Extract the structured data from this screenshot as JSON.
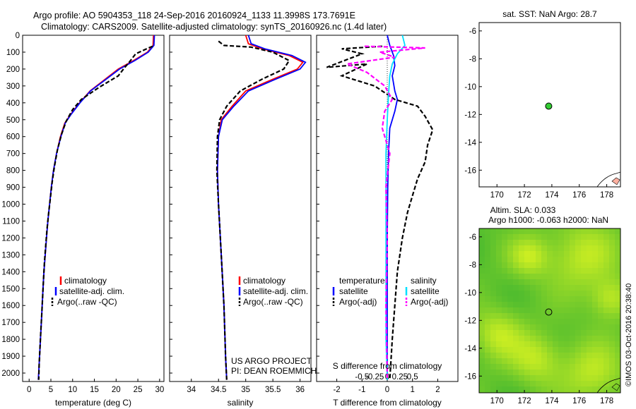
{
  "header": {
    "title_line1": "Argo profile: AO 5904353_118 24-Sep-2016 20160924_1133 11.3998S 173.7691E",
    "title_line2": "Climatology: CARS2009. Satellite-adjusted climatology: synTS_20160926.nc (1.4d later)"
  },
  "colors": {
    "climatology": "#ff0000",
    "satellite": "#0000ff",
    "argo": "#000000",
    "sal_satellite": "#00e0ff",
    "sal_argo": "#ff00ff",
    "map_green": "#33cc33",
    "sla_low": "#22aa33",
    "sla_high": "#ccee22"
  },
  "chart_data": [
    {
      "type": "line",
      "id": "temperature",
      "xlabel": "temperature (deg C)",
      "xlim": [
        -1.5,
        31
      ],
      "xticks": [
        0,
        5,
        10,
        15,
        20,
        25,
        30
      ],
      "ylim": [
        0,
        2050
      ],
      "yticks": [
        0,
        100,
        200,
        300,
        400,
        500,
        600,
        700,
        800,
        900,
        1000,
        1100,
        1200,
        1300,
        1400,
        1500,
        1600,
        1700,
        1800,
        1900,
        2000
      ],
      "series": [
        {
          "name": "climatology",
          "color": "#ff0000",
          "points": [
            [
              28.6,
              0
            ],
            [
              28.5,
              60
            ],
            [
              27.2,
              100
            ],
            [
              24,
              150
            ],
            [
              20.5,
              200
            ],
            [
              17,
              270
            ],
            [
              14,
              330
            ],
            [
              11.6,
              400
            ],
            [
              9.5,
              470
            ],
            [
              8.2,
              520
            ],
            [
              7.2,
              600
            ],
            [
              6.3,
              700
            ],
            [
              5.6,
              800
            ],
            [
              5.1,
              900
            ],
            [
              4.7,
              1000
            ],
            [
              4.3,
              1100
            ],
            [
              4.0,
              1200
            ],
            [
              3.7,
              1300
            ],
            [
              3.4,
              1400
            ],
            [
              3.2,
              1500
            ],
            [
              3.0,
              1600
            ],
            [
              2.8,
              1700
            ],
            [
              2.6,
              1800
            ],
            [
              2.4,
              1900
            ],
            [
              2.2,
              2000
            ],
            [
              2.1,
              2040
            ]
          ]
        },
        {
          "name": "satellite-adj. clim.",
          "color": "#0000ff",
          "points": [
            [
              28.8,
              0
            ],
            [
              28.7,
              60
            ],
            [
              27.4,
              100
            ],
            [
              24.3,
              150
            ],
            [
              20.8,
              200
            ],
            [
              17.2,
              270
            ],
            [
              14.1,
              330
            ],
            [
              11.7,
              400
            ],
            [
              9.6,
              470
            ],
            [
              8.3,
              520
            ],
            [
              7.3,
              600
            ],
            [
              6.3,
              700
            ],
            [
              5.6,
              800
            ],
            [
              5.1,
              900
            ],
            [
              4.7,
              1000
            ],
            [
              4.3,
              1100
            ],
            [
              4.0,
              1200
            ],
            [
              3.7,
              1300
            ],
            [
              3.4,
              1400
            ],
            [
              3.2,
              1500
            ],
            [
              3.0,
              1600
            ],
            [
              2.8,
              1700
            ],
            [
              2.6,
              1800
            ],
            [
              2.4,
              1900
            ],
            [
              2.2,
              2000
            ],
            [
              2.1,
              2040
            ]
          ]
        },
        {
          "name": "Argo(..raw -QC)",
          "color": "#000000",
          "dash": true,
          "points": [
            [
              28.4,
              65
            ],
            [
              27,
              80
            ],
            [
              24.5,
              110
            ],
            [
              23,
              160
            ],
            [
              22,
              190
            ],
            [
              20.5,
              240
            ],
            [
              16,
              310
            ],
            [
              12,
              380
            ],
            [
              10,
              440
            ],
            [
              8.5,
              510
            ],
            [
              7.4,
              590
            ],
            [
              6.5,
              680
            ],
            [
              5.8,
              780
            ],
            [
              5.3,
              870
            ],
            [
              4.9,
              960
            ],
            [
              4.5,
              1050
            ],
            [
              4.1,
              1150
            ],
            [
              3.8,
              1250
            ],
            [
              3.5,
              1350
            ],
            [
              3.3,
              1450
            ],
            [
              3.1,
              1550
            ],
            [
              2.9,
              1650
            ],
            [
              2.7,
              1750
            ],
            [
              2.5,
              1850
            ],
            [
              2.3,
              1950
            ],
            [
              2.2,
              2040
            ]
          ]
        }
      ],
      "legend": {
        "placement": "bottom-center",
        "entries": [
          "climatology",
          "satellite-adj. clim.",
          "Argo(..raw -QC)"
        ]
      }
    },
    {
      "type": "line",
      "id": "salinity",
      "xlabel": "salinity",
      "xlim": [
        33.6,
        36.2
      ],
      "xticks": [
        34,
        34.5,
        35,
        35.5,
        36
      ],
      "xticklabels": [
        "34",
        "34.5",
        "35",
        "35.5",
        "36"
      ],
      "series": [
        {
          "name": "climatology",
          "color": "#ff0000",
          "points": [
            [
              35.0,
              0
            ],
            [
              35.05,
              50
            ],
            [
              35.3,
              80
            ],
            [
              35.8,
              120
            ],
            [
              36.05,
              160
            ],
            [
              35.95,
              200
            ],
            [
              35.5,
              260
            ],
            [
              35.0,
              330
            ],
            [
              34.75,
              420
            ],
            [
              34.55,
              500
            ],
            [
              34.5,
              600
            ],
            [
              34.48,
              800
            ],
            [
              34.5,
              1000
            ],
            [
              34.55,
              1300
            ],
            [
              34.6,
              1600
            ],
            [
              34.63,
              1900
            ],
            [
              34.65,
              2040
            ]
          ]
        },
        {
          "name": "satellite-adj. clim.",
          "color": "#0000ff",
          "points": [
            [
              35.05,
              0
            ],
            [
              35.1,
              50
            ],
            [
              35.35,
              80
            ],
            [
              35.85,
              120
            ],
            [
              36.1,
              160
            ],
            [
              36.0,
              200
            ],
            [
              35.55,
              260
            ],
            [
              35.05,
              330
            ],
            [
              34.78,
              420
            ],
            [
              34.57,
              500
            ],
            [
              34.5,
              600
            ],
            [
              34.48,
              800
            ],
            [
              34.5,
              1000
            ],
            [
              34.55,
              1300
            ],
            [
              34.6,
              1600
            ],
            [
              34.63,
              1900
            ],
            [
              34.65,
              2040
            ]
          ]
        },
        {
          "name": "Argo(..raw -QC)",
          "color": "#000000",
          "dash": true,
          "points": [
            [
              34.5,
              35
            ],
            [
              34.6,
              60
            ],
            [
              35.1,
              70
            ],
            [
              35.5,
              100
            ],
            [
              35.8,
              150
            ],
            [
              35.7,
              200
            ],
            [
              35.3,
              260
            ],
            [
              34.9,
              330
            ],
            [
              34.65,
              420
            ],
            [
              34.52,
              500
            ],
            [
              34.48,
              600
            ],
            [
              34.47,
              800
            ],
            [
              34.5,
              1000
            ],
            [
              34.55,
              1300
            ],
            [
              34.6,
              1600
            ],
            [
              34.63,
              1900
            ],
            [
              34.65,
              2040
            ]
          ]
        }
      ],
      "legend": {
        "placement": "bottom-center",
        "entries": [
          "climatology",
          "satellite-adj. clim.",
          "Argo(..raw -QC)"
        ]
      },
      "annotation": {
        "line1": "US ARGO PROJECT",
        "line2": "PI: DEAN ROEMMICH"
      }
    },
    {
      "type": "line",
      "id": "differences",
      "xlabel_top": "S difference from climatology",
      "xlabel": "T difference from climatology",
      "xlim": [
        -2.8,
        2.8
      ],
      "xticks": [
        -2,
        -1,
        0,
        1,
        2
      ],
      "xticklabels": [
        "-2",
        "-1",
        "0",
        "1",
        "2"
      ],
      "sticks": [
        -1,
        -0.5,
        0,
        0.5,
        1
      ],
      "sticklabels": [
        "-0.5",
        "-0.25",
        "0",
        "0.25",
        "0.5"
      ],
      "series": [
        {
          "name": "temperature satellite",
          "color": "#0000ff",
          "points": [
            [
              0,
              0
            ],
            [
              0.1,
              60
            ],
            [
              0.25,
              120
            ],
            [
              0.3,
              180
            ],
            [
              0.2,
              240
            ],
            [
              0.3,
              330
            ],
            [
              0.4,
              380
            ],
            [
              0.3,
              450
            ],
            [
              0.1,
              550
            ],
            [
              0.05,
              700
            ],
            [
              0.02,
              900
            ],
            [
              0,
              1200
            ],
            [
              0,
              1600
            ],
            [
              0,
              2040
            ]
          ]
        },
        {
          "name": "temperature Argo(-adj)",
          "color": "#000000",
          "dash": true,
          "points": [
            [
              -0.2,
              65
            ],
            [
              -1.8,
              80
            ],
            [
              -1,
              110
            ],
            [
              -2.4,
              190
            ],
            [
              -0.8,
              170
            ],
            [
              -1.8,
              240
            ],
            [
              -0.5,
              300
            ],
            [
              0.3,
              380
            ],
            [
              1.2,
              420
            ],
            [
              1.5,
              480
            ],
            [
              1.8,
              560
            ],
            [
              1.6,
              650
            ],
            [
              1.5,
              750
            ],
            [
              1.2,
              850
            ],
            [
              1.0,
              950
            ],
            [
              0.8,
              1050
            ],
            [
              0.6,
              1200
            ],
            [
              0.4,
              1400
            ],
            [
              0.3,
              1600
            ],
            [
              0.2,
              1800
            ],
            [
              0.1,
              2040
            ]
          ]
        },
        {
          "name": "salinity satellite",
          "color": "#00e0ff",
          "points": [
            [
              0.6,
              0
            ],
            [
              0.7,
              60
            ],
            [
              0.4,
              110
            ],
            [
              0.2,
              170
            ],
            [
              0.1,
              240
            ],
            [
              0.05,
              350
            ],
            [
              0,
              500
            ],
            [
              -0.05,
              700
            ],
            [
              -0.05,
              1000
            ],
            [
              -0.05,
              1400
            ],
            [
              -0.05,
              1800
            ],
            [
              0,
              2040
            ]
          ]
        },
        {
          "name": "salinity Argo(-adj)",
          "color": "#ff00ff",
          "dash": true,
          "points": [
            [
              -0.9,
              65
            ],
            [
              1.5,
              75
            ],
            [
              -0.3,
              100
            ],
            [
              0.3,
              130
            ],
            [
              -1.6,
              170
            ],
            [
              -0.8,
              220
            ],
            [
              -0.1,
              300
            ],
            [
              0.2,
              380
            ],
            [
              -0.1,
              450
            ],
            [
              -0.2,
              550
            ],
            [
              0.1,
              700
            ],
            [
              -0.05,
              900
            ],
            [
              0,
              1200
            ],
            [
              -0.05,
              1600
            ],
            [
              0,
              2040
            ]
          ]
        }
      ],
      "legend": {
        "placement": "bottom-center",
        "temp_header": "temperature",
        "sal_header": "salinity",
        "entries_t": [
          "satellite",
          "Argo(-adj)"
        ],
        "entries_s": [
          "satellite",
          "Argo(-adj)"
        ]
      }
    },
    {
      "type": "scatter",
      "id": "sst_map",
      "title": "sat. SST: NaN Argo: 28.7",
      "xlim": [
        168.7,
        179
      ],
      "ylim": [
        -17.2,
        -5.4
      ],
      "xticks": [
        170,
        172,
        174,
        176,
        178
      ],
      "yticks": [
        -6,
        -8,
        -10,
        -12,
        -14,
        -16
      ],
      "profile_location": [
        173.77,
        -11.4
      ]
    },
    {
      "type": "heatmap",
      "id": "sla_map",
      "title_line1": "Altim. SLA: 0.033",
      "title_line2": "Argo h1000: -0.063 h2000: NaN",
      "xlim": [
        168.7,
        179
      ],
      "ylim": [
        -17.2,
        -5.4
      ],
      "xticks": [
        170,
        172,
        174,
        176,
        178
      ],
      "yticks": [
        -6,
        -8,
        -10,
        -12,
        -14,
        -16
      ],
      "profile_location": [
        173.77,
        -11.4
      ]
    }
  ],
  "footer": {
    "stamp": "©IMOS 03-Oct-2016 20:38:40"
  }
}
